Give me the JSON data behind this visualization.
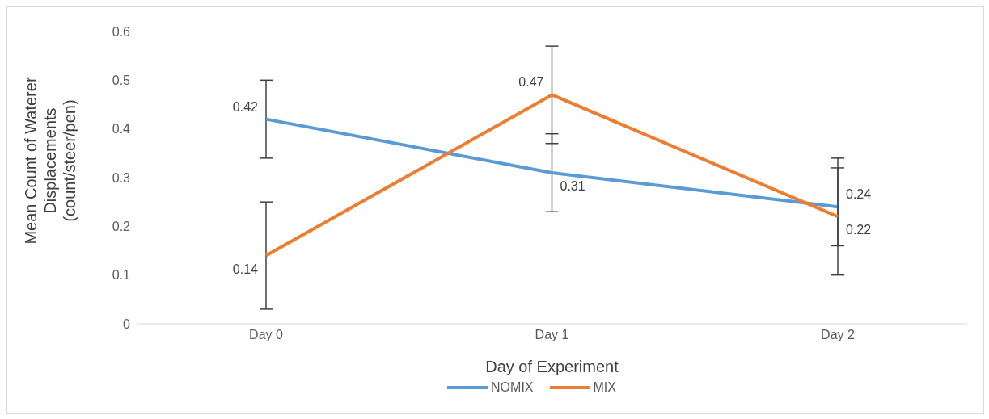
{
  "chart_data": {
    "type": "line",
    "xlabel": "Day of Experiment",
    "ylabel": "Mean Count of Waterer Displacements (count/steer/pen)",
    "categories": [
      "Day 0",
      "Day 1",
      "Day 2"
    ],
    "series": [
      {
        "name": "NOMIX",
        "color": "#5b9bd5",
        "values": [
          0.42,
          0.31,
          0.24
        ],
        "errors": [
          0.08,
          0.08,
          0.08
        ]
      },
      {
        "name": "MIX",
        "color": "#ed7d31",
        "values": [
          0.14,
          0.47,
          0.22
        ],
        "errors": [
          0.11,
          0.1,
          0.12
        ]
      }
    ],
    "ylim": [
      0,
      0.6
    ],
    "yticks": [
      0,
      0.1,
      0.2,
      0.3,
      0.4,
      0.5,
      0.6
    ],
    "legend": "bottom",
    "marker": "none",
    "line_style": "solid",
    "data_labels": true
  }
}
